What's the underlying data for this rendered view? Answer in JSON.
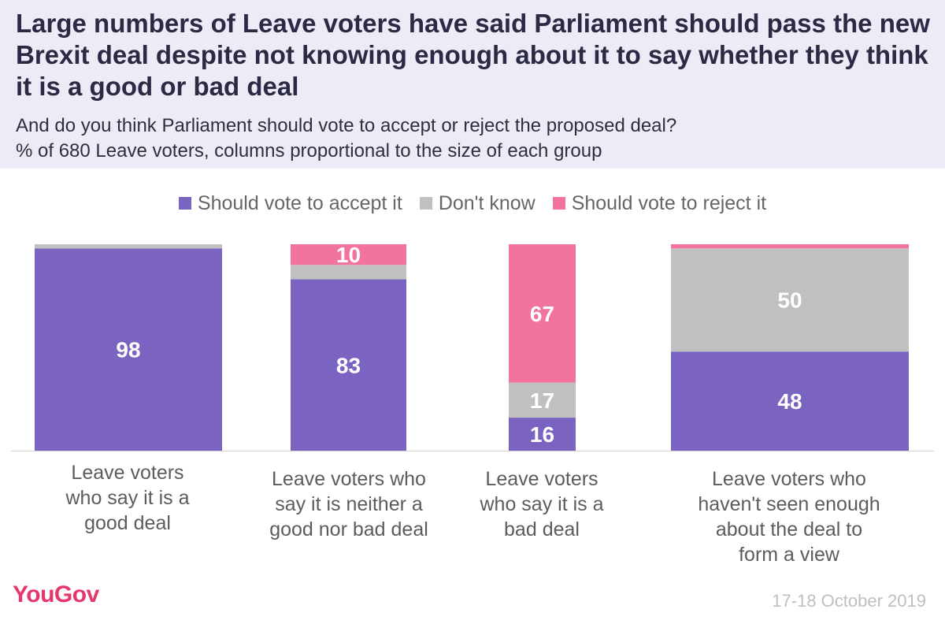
{
  "title": "Large numbers of Leave voters have said Parliament should pass the new Brexit deal despite not knowing enough about it to say whether they think it is a good or bad deal",
  "subtitle_line1": "And do you think Parliament should vote to accept or reject the proposed deal?",
  "subtitle_line2": "% of 680 Leave voters, columns proportional to the size of each group",
  "legend": [
    {
      "label": "Should vote to accept it",
      "color": "#7b63c1"
    },
    {
      "label": "Don't know",
      "color": "#c0c0c0"
    },
    {
      "label": "Should vote to reject it",
      "color": "#f1739e"
    }
  ],
  "chart_data": {
    "type": "bar",
    "stacked": true,
    "ylim": [
      0,
      100
    ],
    "categories": [
      "Leave voters who say it is a good deal",
      "Leave voters who say it is neither a good nor bad deal",
      "Leave voters who say it is a bad deal",
      "Leave voters who haven't seen enough about the deal to form a view"
    ],
    "series": [
      {
        "name": "Should vote to accept it",
        "color": "#7b63c1",
        "values": [
          98,
          83,
          16,
          48
        ]
      },
      {
        "name": "Don't know",
        "color": "#c0c0c0",
        "values": [
          2,
          7,
          17,
          50
        ]
      },
      {
        "name": "Should vote to reject it",
        "color": "#f1739e",
        "values": [
          0,
          10,
          67,
          2
        ]
      }
    ],
    "data_labels": [
      [
        "98",
        "83",
        "16",
        "48"
      ],
      [
        "",
        "",
        "17",
        "50"
      ],
      [
        "",
        "10",
        "67",
        ""
      ]
    ]
  },
  "category_labels": {
    "cat0": {
      "l1": "Leave voters",
      "l2": "who say it is a",
      "l3": "good deal"
    },
    "cat1": {
      "l1": "Leave voters who",
      "l2": "say it is neither a",
      "l3": "good nor bad deal"
    },
    "cat2": {
      "l1": "Leave voters",
      "l2": "who say it is a",
      "l3": "bad deal"
    },
    "cat3": {
      "l1": "Leave voters who",
      "l2": "haven't seen enough",
      "l3": "about the deal to",
      "l4": "form a view"
    }
  },
  "brand": "YouGov",
  "date": "17-18 October 2019"
}
